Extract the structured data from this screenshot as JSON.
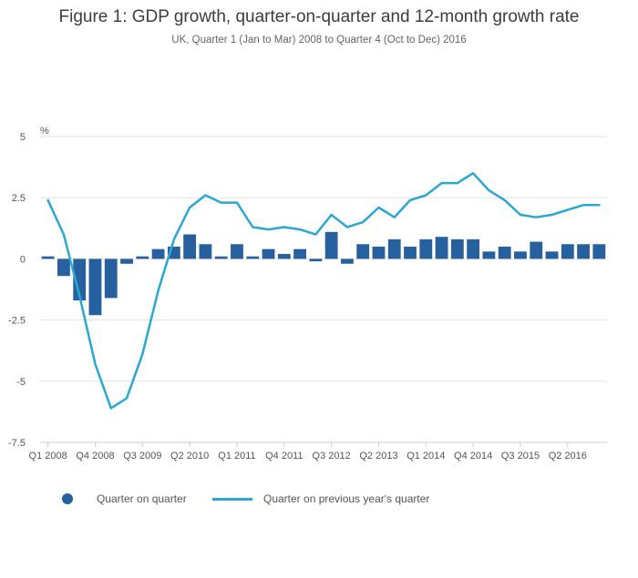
{
  "chart_data": {
    "type": "bar",
    "title": "Figure 1: GDP growth, quarter-on-quarter and 12-month growth rate",
    "subtitle": "UK, Quarter 1 (Jan to Mar) 2008 to Quarter 4 (Oct to Dec) 2016",
    "ylabel": "%",
    "ylim": [
      -7.5,
      5
    ],
    "yticks": [
      5,
      2.5,
      0,
      -2.5,
      -5,
      -7.5
    ],
    "ytick_labels": [
      "5",
      "2.5",
      "0",
      "-2.5",
      "-5",
      "-7.5"
    ],
    "grid": true,
    "legend_position": "bottom-left",
    "categories": [
      "Q1 2008",
      "Q2 2008",
      "Q3 2008",
      "Q4 2008",
      "Q1 2009",
      "Q2 2009",
      "Q3 2009",
      "Q4 2009",
      "Q1 2010",
      "Q2 2010",
      "Q3 2010",
      "Q4 2010",
      "Q1 2011",
      "Q2 2011",
      "Q3 2011",
      "Q4 2011",
      "Q1 2012",
      "Q2 2012",
      "Q3 2012",
      "Q4 2012",
      "Q1 2013",
      "Q2 2013",
      "Q3 2013",
      "Q4 2013",
      "Q1 2014",
      "Q2 2014",
      "Q3 2014",
      "Q4 2014",
      "Q1 2015",
      "Q2 2015",
      "Q3 2015",
      "Q4 2015",
      "Q1 2016",
      "Q2 2016",
      "Q3 2016",
      "Q4 2016"
    ],
    "x_tick_labels": [
      "Q1 2008",
      "Q4 2008",
      "Q3 2009",
      "Q2 2010",
      "Q1 2011",
      "Q4 2011",
      "Q3 2012",
      "Q2 2013",
      "Q1 2014",
      "Q4 2014",
      "Q3 2015",
      "Q2 2016"
    ],
    "series": [
      {
        "name": "Quarter on quarter",
        "type": "bar",
        "color": "#27609f",
        "values": [
          0.1,
          -0.7,
          -1.7,
          -2.3,
          -1.6,
          -0.2,
          0.1,
          0.4,
          0.5,
          1.0,
          0.6,
          0.1,
          0.6,
          0.1,
          0.4,
          0.2,
          0.4,
          -0.1,
          1.1,
          -0.2,
          0.6,
          0.5,
          0.8,
          0.5,
          0.8,
          0.9,
          0.8,
          0.8,
          0.3,
          0.5,
          0.3,
          0.7,
          0.3,
          0.6,
          0.6,
          0.6
        ]
      },
      {
        "name": "Quarter on previous year's quarter",
        "type": "line",
        "color": "#2aa7d3",
        "values": [
          2.4,
          1.0,
          -1.5,
          -4.3,
          -6.1,
          -5.7,
          -3.9,
          -1.3,
          0.8,
          2.1,
          2.6,
          2.3,
          2.3,
          1.3,
          1.2,
          1.3,
          1.2,
          1.0,
          1.8,
          1.3,
          1.5,
          2.1,
          1.7,
          2.4,
          2.6,
          3.1,
          3.1,
          3.5,
          2.8,
          2.4,
          1.8,
          1.7,
          1.8,
          2.0,
          2.2,
          2.2
        ]
      }
    ]
  }
}
